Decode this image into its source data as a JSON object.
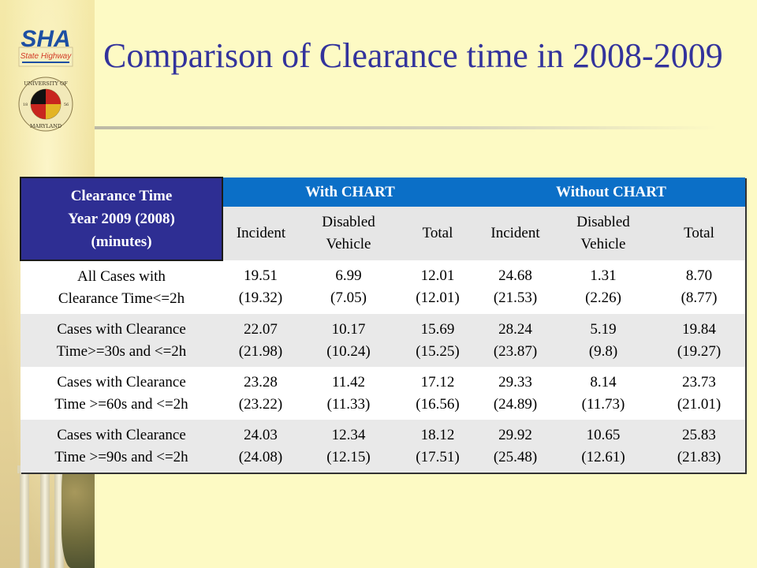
{
  "header": {
    "title": "Comparison of Clearance time in 2008-2009"
  },
  "logos": {
    "sha": {
      "icon": "sha-logo-icon",
      "text": "SHA",
      "subtitle": "State Highway"
    },
    "umd": {
      "icon": "university-of-maryland-seal-icon",
      "text_top": "UNIVERSITY OF",
      "text_bottom": "MARYLAND",
      "year_left": "18",
      "year_right": "56"
    }
  },
  "table": {
    "corner_header": [
      "Clearance Time",
      "Year 2009 (2008)",
      "(minutes)"
    ],
    "groups": [
      "With CHART",
      "Without CHART"
    ],
    "sub_headers": [
      "Incident",
      "Disabled Vehicle",
      "Total",
      "Incident",
      "Disabled Vehicle",
      "Total"
    ],
    "rows": [
      {
        "label": [
          "All Cases with",
          "Clearance Time<=2h"
        ],
        "cells": [
          {
            "v2009": "19.51",
            "v2008": "(19.32)"
          },
          {
            "v2009": "6.99",
            "v2008": "(7.05)"
          },
          {
            "v2009": "12.01",
            "v2008": "(12.01)"
          },
          {
            "v2009": "24.68",
            "v2008": "(21.53)"
          },
          {
            "v2009": "1.31",
            "v2008": "(2.26)"
          },
          {
            "v2009": "8.70",
            "v2008": "(8.77)"
          }
        ]
      },
      {
        "label": [
          "Cases with Clearance",
          "Time>=30s and <=2h"
        ],
        "cells": [
          {
            "v2009": "22.07",
            "v2008": "(21.98)"
          },
          {
            "v2009": "10.17",
            "v2008": "(10.24)"
          },
          {
            "v2009": "15.69",
            "v2008": "(15.25)"
          },
          {
            "v2009": "28.24",
            "v2008": "(23.87)"
          },
          {
            "v2009": "5.19",
            "v2008": "(9.8)"
          },
          {
            "v2009": "19.84",
            "v2008": "(19.27)"
          }
        ]
      },
      {
        "label": [
          "Cases with Clearance",
          "Time >=60s and <=2h"
        ],
        "cells": [
          {
            "v2009": "23.28",
            "v2008": "(23.22)"
          },
          {
            "v2009": "11.42",
            "v2008": "(11.33)"
          },
          {
            "v2009": "17.12",
            "v2008": "(16.56)"
          },
          {
            "v2009": "29.33",
            "v2008": "(24.89)"
          },
          {
            "v2009": "8.14",
            "v2008": "(11.73)"
          },
          {
            "v2009": "23.73",
            "v2008": "(21.01)"
          }
        ]
      },
      {
        "label": [
          "Cases with Clearance",
          "Time >=90s and <=2h"
        ],
        "cells": [
          {
            "v2009": "24.03",
            "v2008": "(24.08)"
          },
          {
            "v2009": "12.34",
            "v2008": "(12.15)"
          },
          {
            "v2009": "18.12",
            "v2008": "(17.51)"
          },
          {
            "v2009": "29.92",
            "v2008": "(25.48)"
          },
          {
            "v2009": "10.65",
            "v2008": "(12.61)"
          },
          {
            "v2009": "25.83",
            "v2008": "(21.83)"
          }
        ]
      }
    ]
  },
  "colors": {
    "title": "#33339c",
    "corner_header_bg": "#2e2e93",
    "group_header_bg": "#0b6fc7",
    "sub_header_bg": "#e6e6e6",
    "slide_bg": "#fdfac4"
  }
}
